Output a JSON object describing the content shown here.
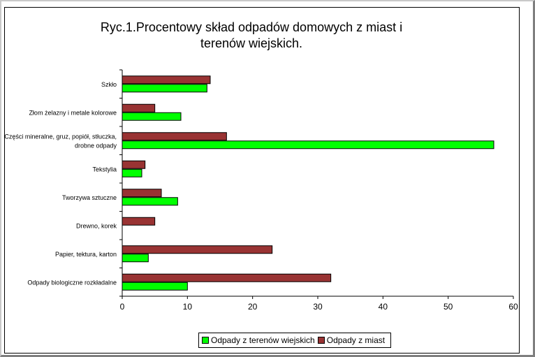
{
  "chart_data": {
    "type": "bar",
    "orientation": "horizontal",
    "title": "Ryc.1.Procentowy skład odpadów domowych z miast i terenów wiejskich.",
    "title_lines": [
      "Ryc.1.Procentowy skład odpadów domowych z miast i",
      "terenów wiejskich."
    ],
    "categories": [
      "Szkło",
      "Złom żelazny i metale kolorowe",
      "Części mineralne, gruz, popiół, stłuczka, drobne odpady",
      "Tekstylia",
      "Tworzywa sztuczne",
      "Drewno, korek",
      "Papier, tektura, karton",
      "Odpady biologiczne rozkładalne"
    ],
    "category_lines": [
      [
        "Szkło"
      ],
      [
        "Złom żelazny i metale kolorowe"
      ],
      [
        "Części mineralne, gruz, popiół, stłuczka,",
        "drobne odpady"
      ],
      [
        "Tekstylia"
      ],
      [
        "Tworzywa sztuczne"
      ],
      [
        "Drewno, korek"
      ],
      [
        "Papier, tektura, karton"
      ],
      [
        "Odpady biologiczne rozkładalne"
      ]
    ],
    "series": [
      {
        "name": "Odpady z miast",
        "color": "#993333",
        "values": [
          13.5,
          5,
          16,
          3.5,
          6,
          5,
          23,
          32
        ]
      },
      {
        "name": "Odpady z terenów wiejskich",
        "color": "#00ff00",
        "values": [
          13,
          9,
          57,
          3,
          8.5,
          0,
          4,
          10
        ]
      }
    ],
    "legend_order": [
      "Odpady z terenów wiejskich",
      "Odpady z miast"
    ],
    "xlim": [
      0,
      60
    ],
    "xticks": [
      "0",
      "10",
      "20",
      "30",
      "40",
      "50",
      "60"
    ],
    "xlabel": "",
    "ylabel": "",
    "grid": false,
    "legend_position": "bottom"
  }
}
